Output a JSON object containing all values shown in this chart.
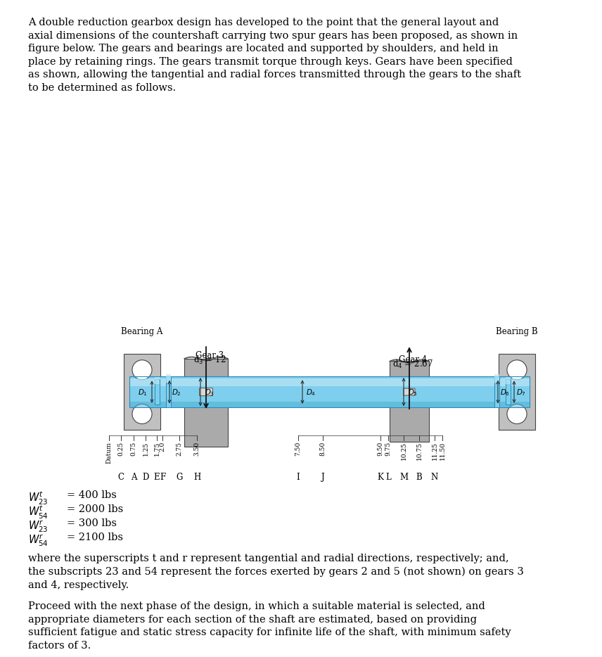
{
  "para0": "A double reduction gearbox design has developed to the point that the general layout and\naxial dimensions of the countershaft carrying two spur gears has been proposed, as shown in\nfigure below. The gears and bearings are located and supported by shoulders, and held in\nplace by retaining rings. The gears transmit torque through keys. Gears have been specified\nas shown, allowing the tangential and radial forces transmitted through the gears to the shaft\nto be determined as follows.",
  "bearing_a_label": "Bearing A",
  "bearing_b_label": "Bearing B",
  "gear3_label": "Gear 3",
  "gear3_d": "d$_3$ = 12",
  "gear4_label": "Gear 4",
  "gear4_d": "d$_4$ = 2.67",
  "para1": "where the superscripts t and r represent tangential and radial directions, respectively; and,\nthe subscripts 23 and 54 represent the forces exerted by gears 2 and 5 (not shown) on gears 3\nand 4, respectively.",
  "para2": "Proceed with the next phase of the design, in which a suitable material is selected, and\nappropriate diameters for each section of the shaft are estimated, based on providing\nsufficient fatigue and static stress capacity for infinite life of the shaft, with minimum safety\nfactors of 3.",
  "bg_color": "#FFFFFF",
  "text_color": "#000000",
  "shaft_blue": "#7ECFED",
  "shaft_light": "#B8E4F5",
  "shaft_dark": "#4AAFD0",
  "bearing_gray": "#C0C0C0",
  "gear_gray": "#AAAAAA",
  "fontsize_body": 10.5,
  "fontsize_label": 8.5,
  "fontsize_dim": 7.5
}
